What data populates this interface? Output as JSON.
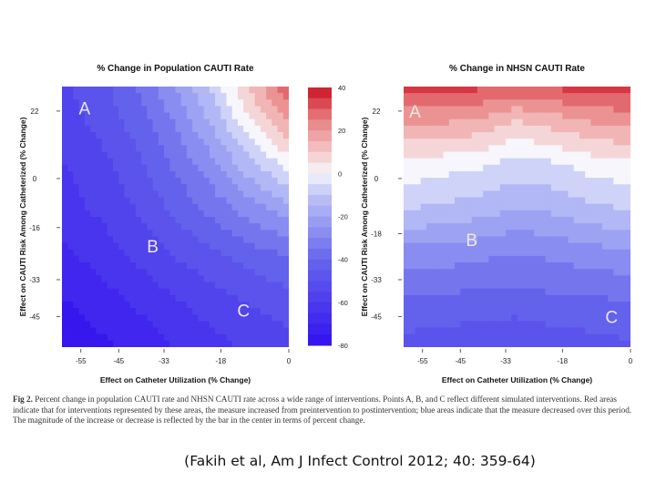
{
  "chart_data": [
    {
      "type": "heatmap",
      "title": "% Change in Population CAUTI Rate",
      "xlabel": "Effect on Catheter Utilization (% Change)",
      "ylabel": "Effect on CAUTI Risk Among Catheterized (% Change)",
      "x_ticks": [
        "-55",
        "-45",
        "-33",
        "-18",
        "0"
      ],
      "y_ticks": [
        "22",
        "0",
        "-16",
        "-33",
        "-45"
      ],
      "x_tick_values": [
        -55,
        -45,
        -33,
        -18,
        0
      ],
      "y_tick_values": [
        22,
        0,
        -16,
        -33,
        -45
      ],
      "xlim": [
        -60,
        0
      ],
      "ylim": [
        -55,
        30
      ],
      "colorbar": {
        "ticks": [
          "40",
          "20",
          "0",
          "-20",
          "-40",
          "-60",
          "-80"
        ],
        "tick_values": [
          40,
          20,
          0,
          -20,
          -40,
          -60,
          -80
        ],
        "range": [
          -80,
          40
        ]
      },
      "points": [
        {
          "label": "A",
          "x": -54,
          "y": 23
        },
        {
          "label": "B",
          "x": -36,
          "y": -22
        },
        {
          "label": "C",
          "x": -12,
          "y": -43
        }
      ],
      "x": [
        -60,
        -50,
        -40,
        -30,
        -20,
        -10,
        0
      ],
      "y": [
        -55,
        -40,
        -25,
        -10,
        5,
        20,
        30
      ],
      "z": [
        [
          -80,
          -75,
          -72,
          -66,
          -62,
          -58,
          -55
        ],
        [
          -74,
          -70,
          -65,
          -60,
          -56,
          -52,
          -49
        ],
        [
          -68,
          -64,
          -58,
          -52,
          -47,
          -42,
          -38
        ],
        [
          -63,
          -58,
          -52,
          -44,
          -36,
          -28,
          -20
        ],
        [
          -60,
          -55,
          -47,
          -37,
          -26,
          -12,
          0
        ],
        [
          -56,
          -50,
          -42,
          -30,
          -15,
          5,
          20
        ],
        [
          -54,
          -48,
          -38,
          -24,
          -8,
          12,
          30
        ]
      ]
    },
    {
      "type": "heatmap",
      "title": "% Change in NHSN CAUTI Rate",
      "xlabel": "Effect on Catheter Utilization (% Change)",
      "ylabel": "Effect on CAUTI Risk Among Catheterized (% Change)",
      "x_ticks": [
        "-55",
        "-45",
        "-33",
        "-18",
        "0"
      ],
      "y_ticks": [
        "22",
        "0",
        "-18",
        "-33",
        "-45"
      ],
      "x_tick_values": [
        -55,
        -45,
        -33,
        -18,
        0
      ],
      "y_tick_values": [
        22,
        0,
        -18,
        -33,
        -45
      ],
      "xlim": [
        -60,
        0
      ],
      "ylim": [
        -55,
        30
      ],
      "points": [
        {
          "label": "A",
          "x": -57,
          "y": 22
        },
        {
          "label": "B",
          "x": -42,
          "y": -20
        },
        {
          "label": "C",
          "x": -5,
          "y": -45
        }
      ],
      "x": [
        -60,
        -50,
        -40,
        -30,
        -20,
        -10,
        0
      ],
      "y": [
        -55,
        -40,
        -25,
        -10,
        5,
        20,
        30
      ],
      "z": [
        [
          -48,
          -50,
          -50,
          -52,
          -50,
          -48,
          -47
        ],
        [
          -40,
          -40,
          -42,
          -42,
          -40,
          -40,
          -38
        ],
        [
          -28,
          -28,
          -30,
          -32,
          -30,
          -28,
          -26
        ],
        [
          -10,
          -12,
          -14,
          -18,
          -16,
          -12,
          -10
        ],
        [
          2,
          0,
          -2,
          -6,
          -4,
          0,
          2
        ],
        [
          20,
          20,
          18,
          12,
          16,
          20,
          22
        ],
        [
          34,
          34,
          33,
          32,
          33,
          34,
          35
        ]
      ]
    }
  ],
  "caption": {
    "label": "Fig 2.",
    "text": "Percent change in population CAUTI rate and NHSN CAUTI rate across a wide range of interventions. Points A, B, and C reflect different simulated interventions. Red areas indicate that for interventions represented by these areas, the measure increased from preintervention to postintervention; blue areas indicate that the measure decreased over this period. The magnitude of the increase or decrease is reflected by the bar in the center in terms of percent change."
  },
  "citation": "(Fakih et al, Am J Infect Control 2012; 40: 359-64)"
}
